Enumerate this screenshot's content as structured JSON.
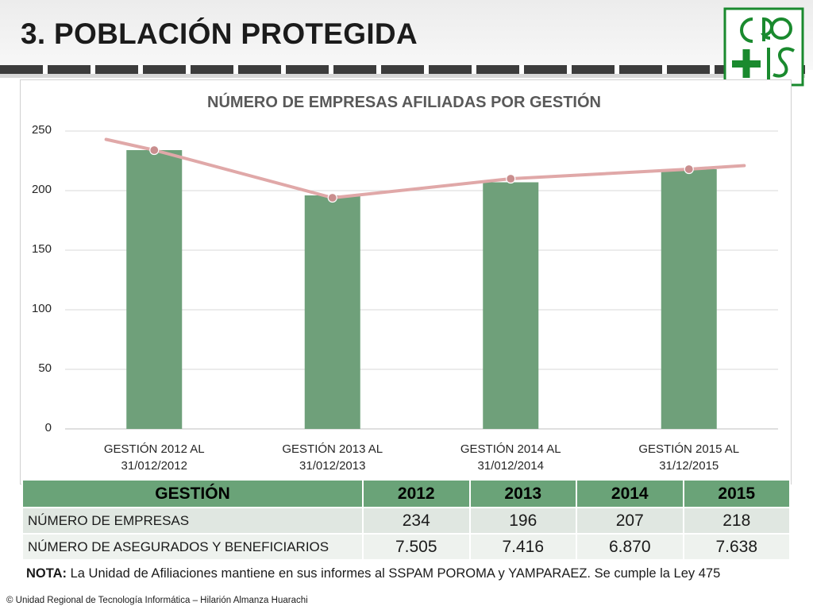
{
  "slide": {
    "title": "3. POBLACIÓN PROTEGIDA",
    "nota_label": "NOTA:",
    "nota_text": " La Unidad de Afiliaciones mantiene en sus informes al SSPAM POROMA y YAMPARAEZ. Se cumple la Ley 475",
    "footer": "© Unidad Regional de Tecnología Informática – Hilarión Almanza Huarachi"
  },
  "logo": {
    "name": "cps-logo-icon",
    "color": "#1a8a2e"
  },
  "chart_data": {
    "type": "bar",
    "title": "NÚMERO DE EMPRESAS AFILIADAS POR GESTIÓN",
    "categories": [
      [
        "GESTIÓN 2012 AL",
        "31/012/2012"
      ],
      [
        "GESTIÓN 2013 AL",
        "31/012/2013"
      ],
      [
        "GESTIÓN 2014 AL",
        "31/012/2014"
      ],
      [
        "GESTIÓN 2015 AL",
        "31/12/2015"
      ]
    ],
    "values": [
      234,
      196,
      207,
      218
    ],
    "trend_line": {
      "start": 243,
      "points": [
        234,
        194,
        210,
        218
      ],
      "end": 221
    },
    "ylim": [
      0,
      250
    ],
    "yticks": [
      "0",
      "50",
      "100",
      "150",
      "200",
      "250"
    ],
    "grid": true,
    "colors": {
      "bar": "#6fa07a",
      "line": "#e0a8a8",
      "marker": "#c98e8e"
    }
  },
  "table": {
    "header": [
      "GESTIÓN",
      "2012",
      "2013",
      "2014",
      "2015"
    ],
    "rows": [
      {
        "label": "NÚMERO DE EMPRESAS",
        "values": [
          "234",
          "196",
          "207",
          "218"
        ]
      },
      {
        "label": "NÚMERO DE ASEGURADOS Y BENEFICIARIOS",
        "values": [
          "7.505",
          "7.416",
          "6.870",
          "7.638"
        ]
      }
    ]
  }
}
